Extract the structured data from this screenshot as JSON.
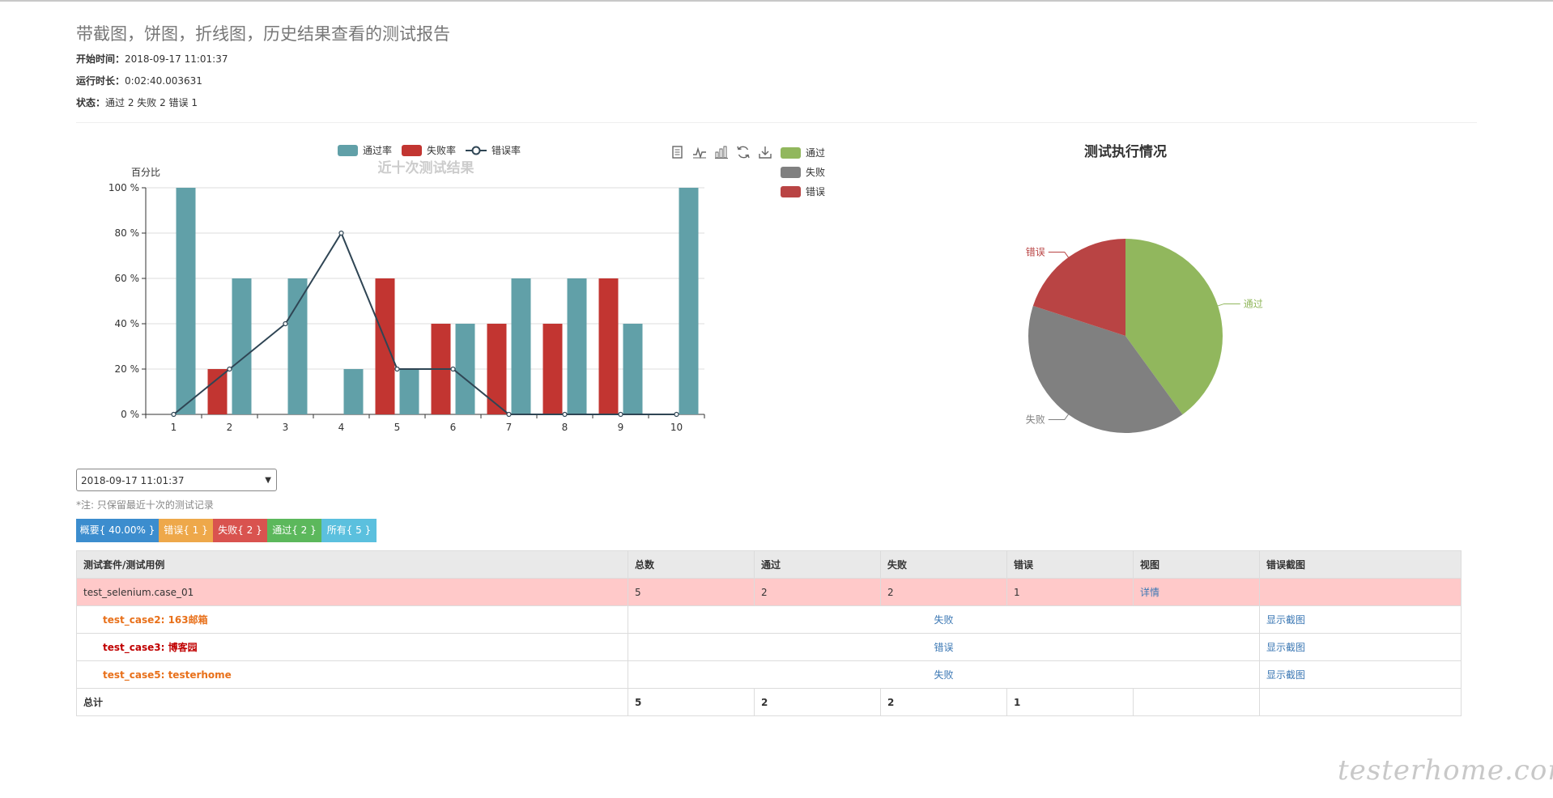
{
  "report": {
    "title": "带截图，饼图，折线图，历史结果查看的测试报告",
    "start_label": "开始时间：",
    "start_value": "2018-09-17 11:01:37",
    "duration_label": "运行时长：",
    "duration_value": "0:02:40.003631",
    "status_label": "状态：",
    "status_value": "通过 2 失败 2 错误 1"
  },
  "history_chart": {
    "legend": [
      "通过率",
      "失败率",
      "错误率"
    ],
    "pie_legend": [
      "通过",
      "失败",
      "错误"
    ],
    "toolbar_icons": [
      "data-view-icon",
      "line-switch-icon",
      "bar-switch-icon",
      "restore-icon",
      "download-icon"
    ]
  },
  "chart_data": [
    {
      "type": "bar",
      "title": "近十次测试结果",
      "ylabel": "百分比",
      "categories": [
        "1",
        "2",
        "3",
        "4",
        "5",
        "6",
        "7",
        "8",
        "9",
        "10"
      ],
      "ylim": [
        0,
        100
      ],
      "yticks": [
        "0 %",
        "20 %",
        "40 %",
        "60 %",
        "80 %",
        "100 %"
      ],
      "series": [
        {
          "name": "失败率",
          "type": "bar",
          "color": "#c23531",
          "values": [
            0,
            20,
            0,
            0,
            60,
            40,
            40,
            40,
            60,
            0
          ]
        },
        {
          "name": "通过率",
          "type": "bar",
          "color": "#61a0a8",
          "values": [
            100,
            60,
            60,
            20,
            20,
            40,
            60,
            60,
            40,
            100
          ]
        },
        {
          "name": "错误率",
          "type": "line",
          "color": "#2f4554",
          "values": [
            0,
            20,
            40,
            80,
            20,
            20,
            0,
            0,
            0,
            0
          ]
        }
      ],
      "grid": true,
      "legend_position": "top"
    },
    {
      "type": "pie",
      "title": "测试执行情况",
      "labels": [
        "通过",
        "失败",
        "错误"
      ],
      "values": [
        2,
        2,
        1
      ],
      "colors": [
        "#91b75d",
        "#808080",
        "#b94444"
      ],
      "legend_position": "top-left"
    }
  ],
  "history_select": {
    "value": "2018-09-17 11:01:37"
  },
  "note": "*注: 只保留最近十次的测试记录",
  "filters": {
    "summary": "概要{ 40.00% }",
    "error": "错误{ 1 }",
    "fail": "失败{ 2 }",
    "pass": "通过{ 2 }",
    "all": "所有{ 5 }"
  },
  "colors": {
    "summary": "#3c8dce",
    "error": "#eea84a",
    "fail": "#d9534f",
    "pass": "#5cb85c",
    "all": "#5bc0de"
  },
  "table": {
    "headers": [
      "测试套件/测试用例",
      "总数",
      "通过",
      "失败",
      "错误",
      "视图",
      "错误截图"
    ],
    "suite": {
      "name": "test_selenium.case_01",
      "total": "5",
      "pass": "2",
      "fail": "2",
      "error": "1",
      "view": "详情"
    },
    "cases": [
      {
        "name": "test_case2: 163邮箱",
        "status": "失败",
        "shot": "显示截图"
      },
      {
        "name": "test_case3: 博客园",
        "status": "错误",
        "shot": "显示截图"
      },
      {
        "name": "test_case5: testerhome",
        "status": "失败",
        "shot": "显示截图"
      }
    ],
    "total": {
      "label": "总计",
      "total": "5",
      "pass": "2",
      "fail": "2",
      "error": "1"
    }
  },
  "watermark": "testerhome.com"
}
